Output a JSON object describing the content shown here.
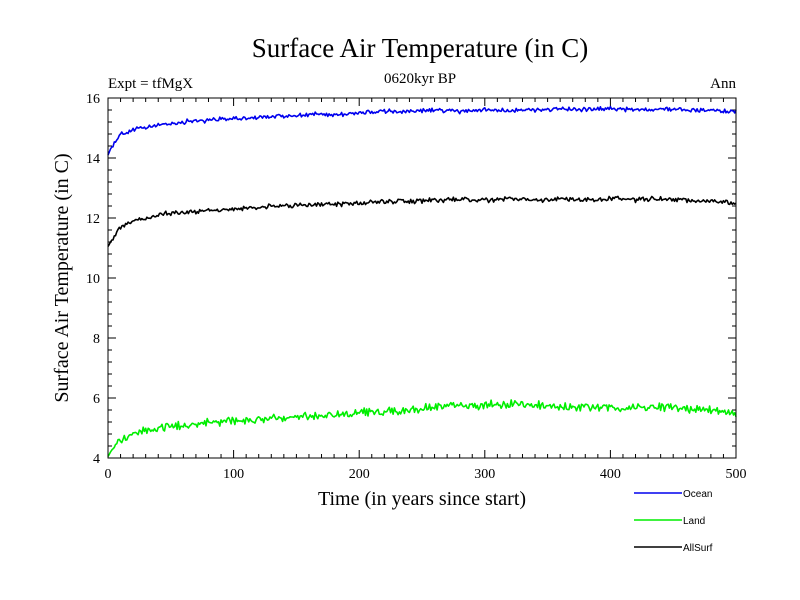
{
  "header": {
    "title": "Surface Air Temperature (in C)",
    "left_note": "Expt = tfMgX",
    "center_note": "0620kyr BP",
    "right_note": "Ann"
  },
  "colors": {
    "ocean": "#0000ee",
    "land": "#00ee00",
    "allsurf": "#000000"
  },
  "chart_data": {
    "type": "line",
    "title": "Surface Air Temperature (in C)",
    "xlabel": "Time (in years since start)",
    "ylabel": "Surface Air Temperature (in C)",
    "xlim": [
      0,
      500
    ],
    "ylim": [
      4,
      16
    ],
    "xticks": [
      0,
      100,
      200,
      300,
      400,
      500
    ],
    "yticks": [
      4,
      6,
      8,
      10,
      12,
      14,
      16
    ],
    "grid": false,
    "legend_position": "bottom-right",
    "x": [
      0,
      2,
      5,
      10,
      15,
      20,
      30,
      40,
      50,
      60,
      70,
      80,
      90,
      100,
      120,
      140,
      160,
      180,
      200,
      220,
      240,
      260,
      280,
      300,
      320,
      340,
      360,
      380,
      400,
      420,
      440,
      460,
      480,
      500
    ],
    "series": [
      {
        "name": "Ocean",
        "values": [
          14.1,
          14.3,
          14.5,
          14.8,
          14.85,
          14.95,
          15.0,
          15.1,
          15.15,
          15.2,
          15.25,
          15.25,
          15.3,
          15.3,
          15.35,
          15.4,
          15.45,
          15.45,
          15.5,
          15.55,
          15.55,
          15.6,
          15.55,
          15.6,
          15.6,
          15.6,
          15.65,
          15.6,
          15.65,
          15.6,
          15.65,
          15.6,
          15.6,
          15.55
        ]
      },
      {
        "name": "Land",
        "values": [
          4.05,
          4.2,
          4.4,
          4.6,
          4.7,
          4.8,
          4.9,
          5.0,
          5.05,
          5.1,
          5.15,
          5.15,
          5.2,
          5.25,
          5.3,
          5.35,
          5.4,
          5.45,
          5.5,
          5.55,
          5.6,
          5.7,
          5.75,
          5.75,
          5.8,
          5.75,
          5.7,
          5.7,
          5.65,
          5.7,
          5.7,
          5.65,
          5.6,
          5.5
        ]
      },
      {
        "name": "AllSurf",
        "values": [
          11.05,
          11.2,
          11.4,
          11.7,
          11.8,
          11.9,
          12.0,
          12.1,
          12.15,
          12.2,
          12.2,
          12.25,
          12.25,
          12.3,
          12.35,
          12.4,
          12.45,
          12.45,
          12.5,
          12.55,
          12.55,
          12.6,
          12.6,
          12.6,
          12.65,
          12.6,
          12.65,
          12.6,
          12.65,
          12.6,
          12.65,
          12.6,
          12.55,
          12.5
        ]
      }
    ]
  }
}
